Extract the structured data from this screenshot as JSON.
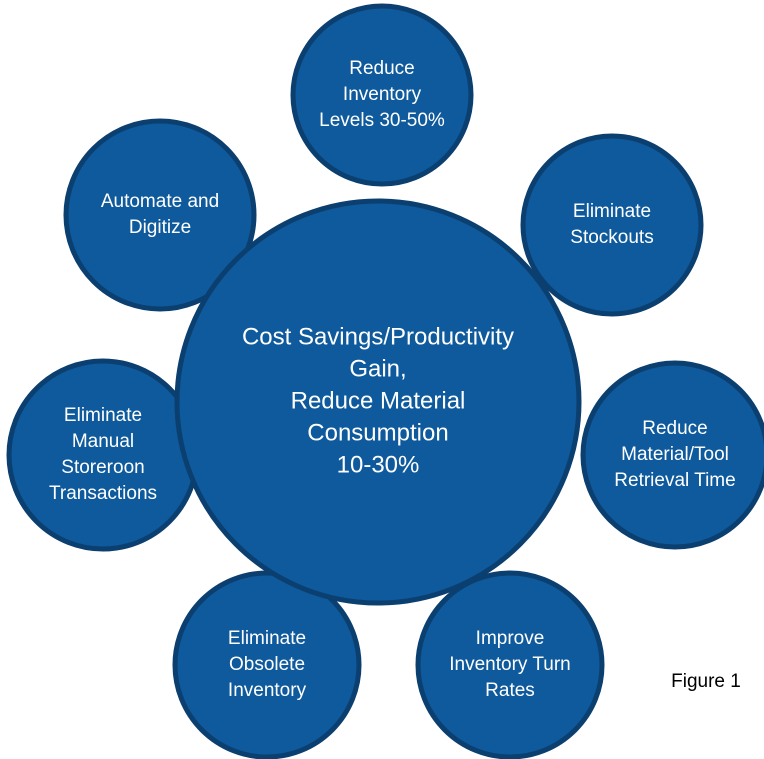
{
  "center": {
    "lines": [
      "Cost Savings/Productivity",
      "Gain,",
      "Reduce Material",
      "Consumption",
      "10-30%"
    ]
  },
  "nodes": [
    {
      "lines": [
        "Reduce",
        "Inventory",
        "Levels 30-50%"
      ]
    },
    {
      "lines": [
        "Eliminate",
        "Stockouts"
      ]
    },
    {
      "lines": [
        "Reduce",
        "Material/Tool",
        "Retrieval Time"
      ]
    },
    {
      "lines": [
        "Improve",
        "Inventory Turn",
        "Rates"
      ]
    },
    {
      "lines": [
        "Eliminate",
        "Obsolete",
        "Inventory"
      ]
    },
    {
      "lines": [
        "Eliminate",
        "Manual",
        "Storeroon",
        "Transactions"
      ]
    },
    {
      "lines": [
        "Automate and",
        "Digitize"
      ]
    }
  ],
  "caption": "Figure 1"
}
